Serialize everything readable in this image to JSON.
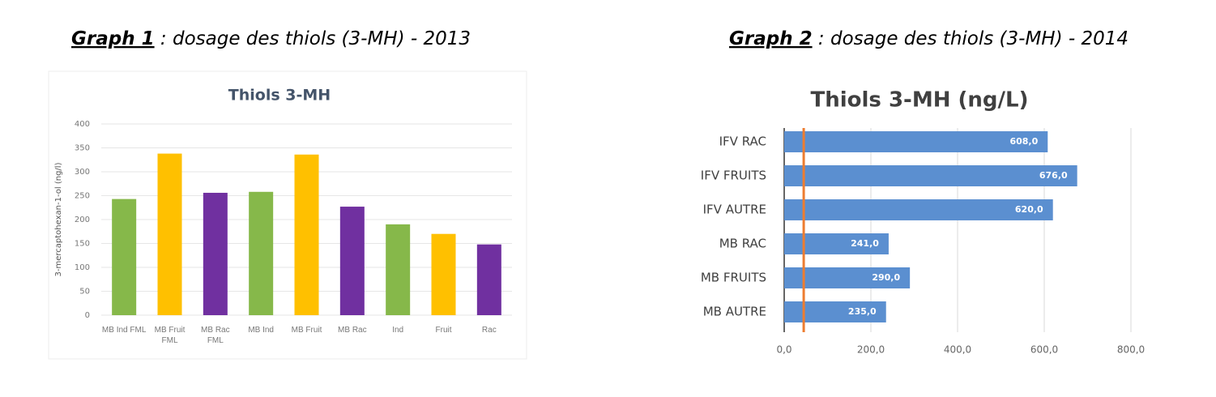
{
  "captions": [
    {
      "label": "Graph 1",
      "text": " : dosage des thiols (3-MH) - 2013"
    },
    {
      "label": "Graph 2",
      "text": " : dosage des thiols (3-MH) - 2014"
    }
  ],
  "chart_data": [
    {
      "type": "bar",
      "title": "Thiols 3-MH",
      "y_label": "3-mercaptohexan-1-ol (ng/l)",
      "categories": [
        "MB Ind FML",
        "MB Fruit FML",
        "MB Rac FML",
        "MB Ind",
        "MB Fruit",
        "MB Rac",
        "Ind",
        "Fruit",
        "Rac"
      ],
      "values": [
        243,
        338,
        256,
        258,
        336,
        227,
        190,
        170,
        148
      ],
      "colors": [
        "#86b84a",
        "#ffc000",
        "#7030a0",
        "#86b84a",
        "#ffc000",
        "#7030a0",
        "#86b84a",
        "#ffc000",
        "#7030a0"
      ],
      "ylim": [
        0,
        400
      ],
      "yticks": [
        0,
        50,
        100,
        150,
        200,
        250,
        300,
        350,
        400
      ],
      "grid": true
    },
    {
      "type": "hbar",
      "title": "Thiols 3-MH (ng/L)",
      "categories": [
        "IFV RAC",
        "IFV FRUITS",
        "IFV AUTRE",
        "MB RAC",
        "MB FRUITS",
        "MB AUTRE"
      ],
      "values": [
        608,
        676,
        620,
        241,
        290,
        235
      ],
      "value_labels": [
        "608,0",
        "676,0",
        "620,0",
        "241,0",
        "290,0",
        "235,0"
      ],
      "color": "#5b8fd0",
      "xlim": [
        0,
        800
      ],
      "xticks": [
        {
          "value": 0,
          "label": "0,0"
        },
        {
          "value": 200,
          "label": "200,0"
        },
        {
          "value": 400,
          "label": "400,0"
        },
        {
          "value": 600,
          "label": "600,0"
        },
        {
          "value": 800,
          "label": "800,0"
        }
      ],
      "grid": true,
      "reference_line": {
        "value": 45,
        "color": "#ed7d31"
      }
    }
  ]
}
